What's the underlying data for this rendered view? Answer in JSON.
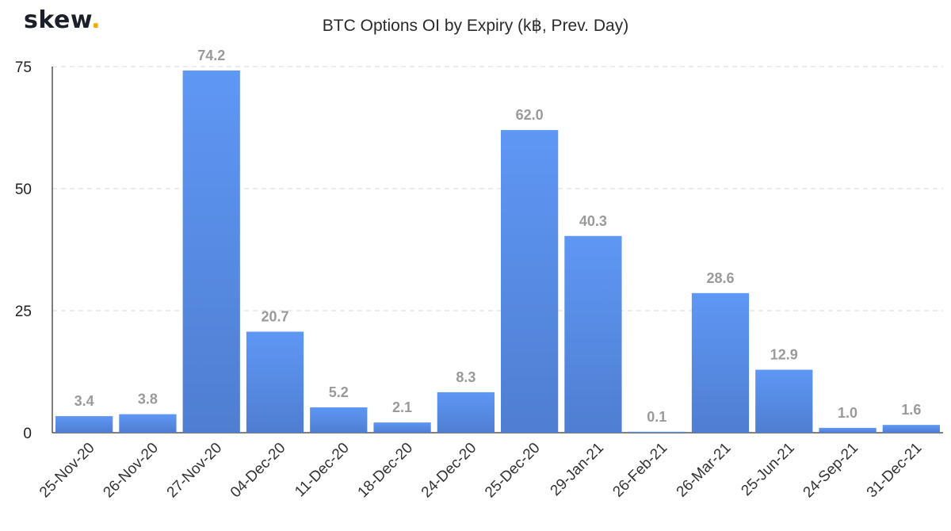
{
  "brand": {
    "name": "skew",
    "dot": "."
  },
  "chart_data": {
    "type": "bar",
    "title": "BTC Options OI by Expiry (k฿, Prev. Day)",
    "xlabel": "",
    "ylabel": "",
    "ylim": [
      0,
      75
    ],
    "yticks": [
      0,
      25,
      50,
      75
    ],
    "grid": true,
    "categories": [
      "25-Nov-20",
      "26-Nov-20",
      "27-Nov-20",
      "04-Dec-20",
      "11-Dec-20",
      "18-Dec-20",
      "24-Dec-20",
      "25-Dec-20",
      "29-Jan-21",
      "26-Feb-21",
      "26-Mar-21",
      "25-Jun-21",
      "24-Sep-21",
      "31-Dec-21"
    ],
    "values": [
      3.4,
      3.8,
      74.2,
      20.7,
      5.2,
      2.1,
      8.3,
      62.0,
      40.3,
      0.1,
      28.6,
      12.9,
      1.0,
      1.6
    ],
    "value_labels": [
      "3.4",
      "3.8",
      "74.2",
      "20.7",
      "5.2",
      "2.1",
      "8.3",
      "62.0",
      "40.3",
      "0.1",
      "28.6",
      "12.9",
      "1.0",
      "1.6"
    ],
    "colors": {
      "bar_top": "#5f97f5",
      "bar_bottom": "#4f7ed1",
      "data_label": "#9a9a9a",
      "brand_dot": "#f2a900"
    }
  }
}
